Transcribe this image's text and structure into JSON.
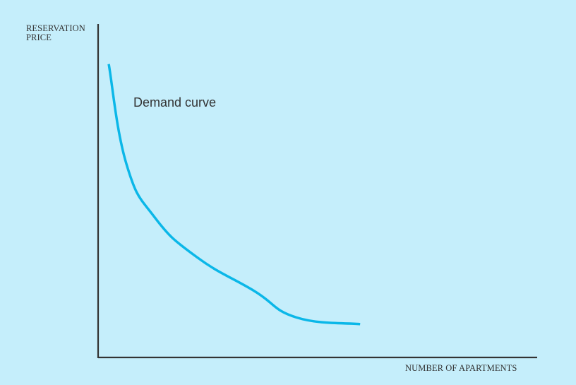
{
  "chart_data": {
    "type": "line",
    "ylabel_lines": [
      "RESERVATION",
      "PRICE"
    ],
    "xlabel": "NUMBER OF APARTMENTS",
    "annotations": [
      "Demand curve"
    ],
    "grid": false,
    "colors": {
      "background": "#c5eefb",
      "curve": "#0bb7e8",
      "axis": "#333333",
      "text": "#333333"
    },
    "series": [
      {
        "values": [
          [
            1.5,
            88
          ],
          [
            4,
            58
          ],
          [
            8,
            42
          ],
          [
            14,
            30
          ],
          [
            22,
            20
          ],
          [
            28,
            12
          ],
          [
            37,
            10
          ]
        ]
      }
    ],
    "xlim": [
      0,
      62
    ],
    "ylim": [
      0,
      100
    ]
  }
}
